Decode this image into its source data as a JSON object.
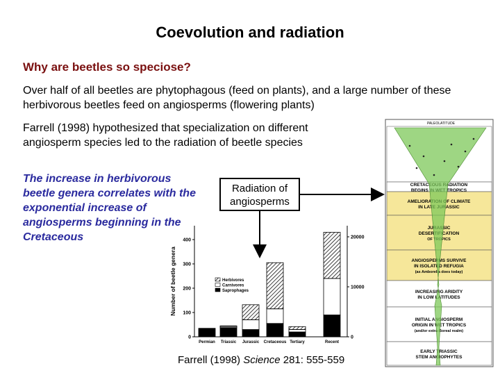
{
  "slide": {
    "title": "Coevolution and radiation",
    "question": "Why are beetles so speciose?",
    "para1": "Over half of all beetles are phytophagous (feed on plants), and a large number of these herbivorous beetles feed on angiosperms (flowering plants)",
    "para2": "Farrell (1998) hypothesized that specialization on different angiosperm species led to the radiation of beetle species",
    "emphasis": "The increase in herbivorous beetle genera correlates with the exponential increase of angiosperms beginning in the Cretaceous",
    "radiation_box": "Radiation of angiosperms",
    "citation_author": "Farrell (1998) ",
    "citation_journal": "Science",
    "citation_rest": " 281: 555-559"
  },
  "chart_data": {
    "type": "bar",
    "ylabel": "Number of beetle genera",
    "categories": [
      "Permian",
      "Triassic",
      "Jurassic",
      "Cretaceous",
      "Tertiary",
      "Recent"
    ],
    "yticks": [
      0,
      100,
      200,
      300,
      400
    ],
    "right_ticks": [
      0,
      10000,
      20000
    ],
    "legend": [
      "Herbivores",
      "Carnivores",
      "Saprophages"
    ],
    "legend_position": "center",
    "series": [
      {
        "name": "Saprophages",
        "values": [
          35,
          38,
          30,
          55,
          20,
          90
        ]
      },
      {
        "name": "Carnivores",
        "values": [
          0,
          5,
          40,
          60,
          10,
          150
        ]
      },
      {
        "name": "Herbivores",
        "values": [
          0,
          2,
          62,
          190,
          12,
          595
        ]
      }
    ],
    "ylim": [
      0,
      420
    ]
  },
  "figure": {
    "top_label": "PALEOLATITUDE",
    "sections": [
      {
        "text": "CRETACEOUS RADIATION BEGINS IN WET TROPICS"
      },
      {
        "text": "AMELIORATION OF CLIMATE IN LATE JURASSIC"
      },
      {
        "text": "JURASSIC DESERTIFICATION OF TROPICS"
      },
      {
        "text": "ANGIOSPERMS SURVIVE IN ISOLATED REFUGIA (as Amborella does today)"
      },
      {
        "text": "INCREASING ARIDITY IN LOW LATITUDES"
      },
      {
        "text": "INITIAL ANGIOSPERM ORIGIN IN WET TROPICS (and/or extra-Boreal realm)"
      },
      {
        "text": "EARLY TRIASSIC STEM ANGIOPHYTES"
      }
    ]
  }
}
